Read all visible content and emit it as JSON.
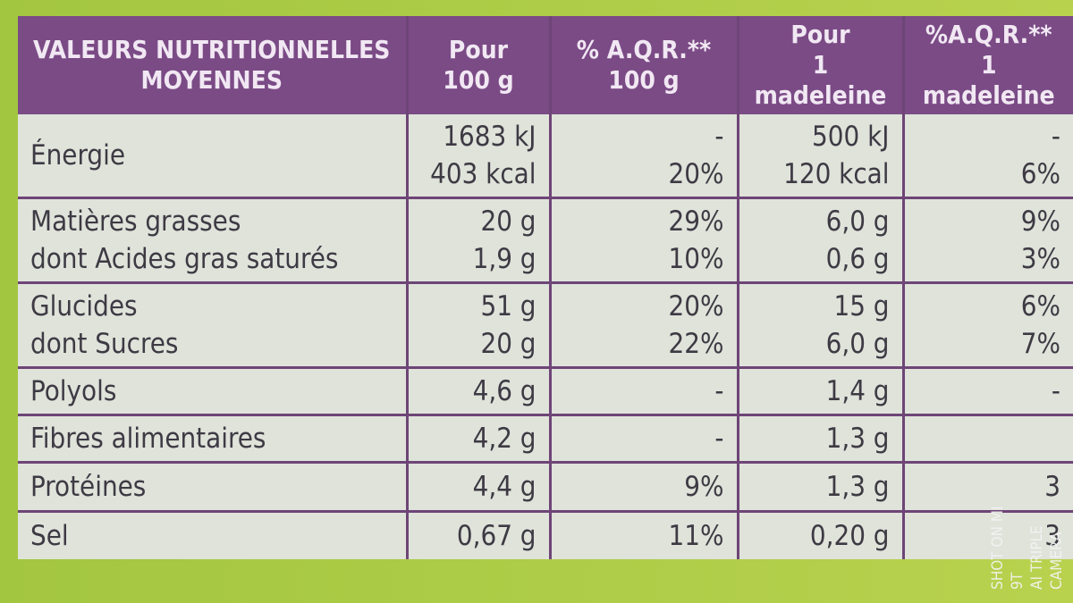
{
  "header": [
    [
      "VALEURS NUTRITIONNELLES",
      "MOYENNES"
    ],
    [
      "Pour",
      "100 g"
    ],
    [
      "% A.Q.R.**",
      "100 g"
    ],
    [
      "Pour",
      "1 madeleine"
    ],
    [
      "%A.Q.R.**",
      "1 madeleine"
    ]
  ],
  "rows": [
    [
      [
        "Énergie"
      ],
      [
        "1683 kJ",
        "403 kcal"
      ],
      [
        "-",
        "20%"
      ],
      [
        "500 kJ",
        "120 kcal"
      ],
      [
        "-",
        "6%"
      ]
    ],
    [
      [
        "Matières grasses",
        "dont Acides gras saturés"
      ],
      [
        "20 g",
        "1,9 g"
      ],
      [
        "29%",
        "10%"
      ],
      [
        "6,0 g",
        "0,6 g"
      ],
      [
        "9%",
        "3%"
      ]
    ],
    [
      [
        "Glucides",
        "dont Sucres"
      ],
      [
        "51 g",
        "20 g"
      ],
      [
        "20%",
        "22%"
      ],
      [
        "15 g",
        "6,0 g"
      ],
      [
        "6%",
        "7%"
      ]
    ],
    [
      [
        "Polyols"
      ],
      [
        "4,6 g"
      ],
      [
        "-"
      ],
      [
        "1,4 g"
      ],
      [
        "-"
      ]
    ],
    [
      [
        "Fibres alimentaires"
      ],
      [
        "4,2 g"
      ],
      [
        "-"
      ],
      [
        "1,3 g"
      ],
      []
    ],
    [
      [
        "Protéines"
      ],
      [
        "4,4 g"
      ],
      [
        "9%"
      ],
      [
        "1,3 g"
      ],
      [
        "3"
      ]
    ],
    [
      [
        "Sel"
      ],
      [
        "0,67 g"
      ],
      [
        "11%"
      ],
      [
        "0,20 g"
      ],
      [
        "3"
      ]
    ]
  ],
  "watermark": [
    "SHOT ON MI 9T",
    "AI TRIPLE CAMERA"
  ]
}
